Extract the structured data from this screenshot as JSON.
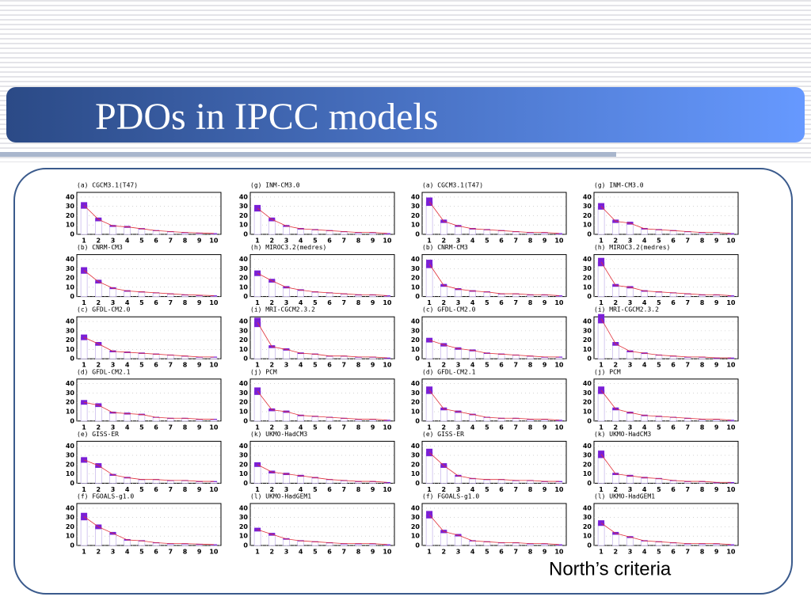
{
  "title": "PDOs in IPCC models",
  "note": "North’s criteria",
  "chart_data": [
    {
      "type": "bar",
      "title": "(a) CGCM3.1(T47)",
      "categories": [
        "1",
        "2",
        "3",
        "4",
        "5",
        "6",
        "7",
        "8",
        "9",
        "10"
      ],
      "values": [
        31,
        16,
        9,
        8,
        6,
        4,
        3,
        2,
        1.5,
        1
      ],
      "errors": [
        3.5,
        2,
        1,
        1,
        0.7,
        0.5,
        0.4,
        0.3,
        0.2,
        0.2
      ],
      "ylim": [
        0,
        45
      ],
      "yticks": [
        0,
        10,
        20,
        30,
        40
      ]
    },
    {
      "type": "bar",
      "title": "(b) CNRM-CM3",
      "categories": [
        "1",
        "2",
        "3",
        "4",
        "5",
        "6",
        "7",
        "8",
        "9",
        "10"
      ],
      "values": [
        28,
        16,
        9,
        6,
        5,
        4,
        3,
        2,
        1.5,
        1
      ],
      "errors": [
        3.5,
        2,
        1,
        0.8,
        0.6,
        0.5,
        0.4,
        0.3,
        0.2,
        0.2
      ],
      "ylim": [
        0,
        45
      ],
      "yticks": [
        0,
        10,
        20,
        30,
        40
      ]
    },
    {
      "type": "bar",
      "title": "(c) GFDL-CM2.0",
      "categories": [
        "1",
        "2",
        "3",
        "4",
        "5",
        "6",
        "7",
        "8",
        "9",
        "10"
      ],
      "values": [
        23,
        16,
        8,
        7,
        6,
        5,
        4,
        3,
        2,
        2
      ],
      "errors": [
        3,
        2,
        1,
        0.8,
        0.7,
        0.6,
        0.5,
        0.4,
        0.3,
        0.3
      ],
      "ylim": [
        0,
        45
      ],
      "yticks": [
        0,
        10,
        20,
        30,
        40
      ]
    },
    {
      "type": "bar",
      "title": "(d) GFDL-CM2.1",
      "categories": [
        "1",
        "2",
        "3",
        "4",
        "5",
        "6",
        "7",
        "8",
        "9",
        "10"
      ],
      "values": [
        20,
        17,
        9,
        8,
        7,
        4,
        3,
        3,
        2,
        2
      ],
      "errors": [
        2.5,
        2,
        1,
        1,
        0.8,
        0.5,
        0.4,
        0.4,
        0.3,
        0.3
      ],
      "ylim": [
        0,
        45
      ],
      "yticks": [
        0,
        10,
        20,
        30,
        40
      ]
    },
    {
      "type": "bar",
      "title": "(e) GISS-ER",
      "categories": [
        "1",
        "2",
        "3",
        "4",
        "5",
        "6",
        "7",
        "8",
        "9",
        "10"
      ],
      "values": [
        25,
        19,
        9,
        6,
        4,
        4,
        3,
        3,
        2,
        2
      ],
      "errors": [
        3,
        2.5,
        1,
        0.8,
        0.5,
        0.5,
        0.4,
        0.4,
        0.3,
        0.3
      ],
      "ylim": [
        0,
        45
      ],
      "yticks": [
        0,
        10,
        20,
        30,
        40
      ]
    },
    {
      "type": "bar",
      "title": "(f) FGOALS-g1.0",
      "categories": [
        "1",
        "2",
        "3",
        "4",
        "5",
        "6",
        "7",
        "8",
        "9",
        "10"
      ],
      "values": [
        31,
        20,
        13,
        6,
        5,
        3,
        2,
        2,
        1.5,
        1
      ],
      "errors": [
        4,
        2.5,
        1.5,
        0.8,
        0.6,
        0.4,
        0.3,
        0.3,
        0.2,
        0.2
      ],
      "ylim": [
        0,
        45
      ],
      "yticks": [
        0,
        10,
        20,
        30,
        40
      ]
    },
    {
      "type": "bar",
      "title": "(g) INM-CM3.0",
      "categories": [
        "1",
        "2",
        "3",
        "4",
        "5",
        "6",
        "7",
        "8",
        "9",
        "10"
      ],
      "values": [
        28,
        16,
        9,
        6,
        5,
        4,
        3,
        2,
        2,
        1
      ],
      "errors": [
        3.5,
        2,
        1,
        0.8,
        0.6,
        0.5,
        0.4,
        0.3,
        0.3,
        0.2
      ],
      "ylim": [
        0,
        45
      ],
      "yticks": [
        0,
        10,
        20,
        30,
        40
      ]
    },
    {
      "type": "bar",
      "title": "(h) MIROC3.2(medres)",
      "categories": [
        "1",
        "2",
        "3",
        "4",
        "5",
        "6",
        "7",
        "8",
        "9",
        "10"
      ],
      "values": [
        25,
        17,
        10,
        7,
        5,
        4,
        3,
        2,
        2,
        1
      ],
      "errors": [
        3,
        2,
        1.2,
        0.8,
        0.6,
        0.5,
        0.4,
        0.3,
        0.3,
        0.2
      ],
      "ylim": [
        0,
        45
      ],
      "yticks": [
        0,
        10,
        20,
        30,
        40
      ]
    },
    {
      "type": "bar",
      "title": "(i) MRI-CGCM2.3.2",
      "categories": [
        "1",
        "2",
        "3",
        "4",
        "5",
        "6",
        "7",
        "8",
        "9",
        "10"
      ],
      "values": [
        39,
        13,
        10,
        6,
        5,
        3,
        3,
        2,
        2,
        1
      ],
      "errors": [
        5,
        1.5,
        1.2,
        0.8,
        0.6,
        0.4,
        0.4,
        0.3,
        0.3,
        0.2
      ],
      "ylim": [
        0,
        45
      ],
      "yticks": [
        0,
        10,
        20,
        30,
        40
      ]
    },
    {
      "type": "bar",
      "title": "(j) PCM",
      "categories": [
        "1",
        "2",
        "3",
        "4",
        "5",
        "6",
        "7",
        "8",
        "9",
        "10"
      ],
      "values": [
        32,
        12,
        10,
        6,
        5,
        4,
        3,
        2,
        2,
        1
      ],
      "errors": [
        4,
        1.5,
        1.2,
        0.8,
        0.6,
        0.5,
        0.4,
        0.3,
        0.3,
        0.2
      ],
      "ylim": [
        0,
        45
      ],
      "yticks": [
        0,
        10,
        20,
        30,
        40
      ]
    },
    {
      "type": "bar",
      "title": "(k) UKMO-HadCM3",
      "categories": [
        "1",
        "2",
        "3",
        "4",
        "5",
        "6",
        "7",
        "8",
        "9",
        "10"
      ],
      "values": [
        20,
        12,
        10,
        8,
        6,
        4,
        3,
        2,
        2,
        1
      ],
      "errors": [
        2.5,
        1.5,
        1.2,
        1,
        0.7,
        0.5,
        0.4,
        0.3,
        0.3,
        0.2
      ],
      "ylim": [
        0,
        45
      ],
      "yticks": [
        0,
        10,
        20,
        30,
        40
      ]
    },
    {
      "type": "bar",
      "title": "(l) UKMO-HadGEM1",
      "categories": [
        "1",
        "2",
        "3",
        "4",
        "5",
        "6",
        "7",
        "8",
        "9",
        "10"
      ],
      "values": [
        17,
        12,
        7,
        5,
        4,
        3,
        2,
        2,
        2,
        1
      ],
      "errors": [
        2,
        1.5,
        0.8,
        0.6,
        0.5,
        0.4,
        0.3,
        0.3,
        0.3,
        0.2
      ],
      "ylim": [
        0,
        45
      ],
      "yticks": [
        0,
        10,
        20,
        30,
        40
      ]
    },
    {
      "type": "bar",
      "title": "(a) CGCM3.1(T47)",
      "categories": [
        "1",
        "2",
        "3",
        "4",
        "5",
        "6",
        "7",
        "8",
        "9",
        "10"
      ],
      "values": [
        35,
        14,
        9,
        6,
        5,
        4,
        3,
        2,
        2,
        1
      ],
      "errors": [
        4.5,
        1.8,
        1,
        0.8,
        0.6,
        0.5,
        0.4,
        0.3,
        0.3,
        0.2
      ],
      "ylim": [
        0,
        45
      ],
      "yticks": [
        0,
        10,
        20,
        30,
        40
      ]
    },
    {
      "type": "bar",
      "title": "(b) CNRM-CM3",
      "categories": [
        "1",
        "2",
        "3",
        "4",
        "5",
        "6",
        "7",
        "8",
        "9",
        "10"
      ],
      "values": [
        35,
        12,
        8,
        6,
        5,
        3,
        3,
        2,
        2,
        1
      ],
      "errors": [
        4.5,
        1.5,
        1,
        0.8,
        0.6,
        0.4,
        0.4,
        0.3,
        0.3,
        0.2
      ],
      "ylim": [
        0,
        45
      ],
      "yticks": [
        0,
        10,
        20,
        30,
        40
      ]
    },
    {
      "type": "bar",
      "title": "(c) GFDL-CM2.0",
      "categories": [
        "1",
        "2",
        "3",
        "4",
        "5",
        "6",
        "7",
        "8",
        "9",
        "10"
      ],
      "values": [
        20,
        15,
        11,
        9,
        6,
        5,
        4,
        3,
        2,
        2
      ],
      "errors": [
        2.5,
        1.8,
        1.3,
        1,
        0.7,
        0.6,
        0.5,
        0.4,
        0.3,
        0.3
      ],
      "ylim": [
        0,
        45
      ],
      "yticks": [
        0,
        10,
        20,
        30,
        40
      ]
    },
    {
      "type": "bar",
      "title": "(d) GFDL-CM2.1",
      "categories": [
        "1",
        "2",
        "3",
        "4",
        "5",
        "6",
        "7",
        "8",
        "9",
        "10"
      ],
      "values": [
        33,
        13,
        10,
        7,
        4,
        3,
        3,
        2,
        2,
        1
      ],
      "errors": [
        4,
        1.5,
        1.2,
        0.8,
        0.5,
        0.4,
        0.4,
        0.3,
        0.3,
        0.2
      ],
      "ylim": [
        0,
        45
      ],
      "yticks": [
        0,
        10,
        20,
        30,
        40
      ]
    },
    {
      "type": "bar",
      "title": "(e) GISS-ER",
      "categories": [
        "1",
        "2",
        "3",
        "4",
        "5",
        "6",
        "7",
        "8",
        "9",
        "10"
      ],
      "values": [
        33,
        19,
        8,
        5,
        4,
        4,
        3,
        3,
        2,
        2
      ],
      "errors": [
        4,
        2.5,
        1,
        0.6,
        0.5,
        0.5,
        0.4,
        0.4,
        0.3,
        0.3
      ],
      "ylim": [
        0,
        45
      ],
      "yticks": [
        0,
        10,
        20,
        30,
        40
      ]
    },
    {
      "type": "bar",
      "title": "(f) FGOALS-g1.0",
      "categories": [
        "1",
        "2",
        "3",
        "4",
        "5",
        "6",
        "7",
        "8",
        "9",
        "10"
      ],
      "values": [
        33,
        15,
        11,
        5,
        4,
        3,
        3,
        2,
        2,
        1
      ],
      "errors": [
        4,
        1.8,
        1.3,
        0.6,
        0.5,
        0.4,
        0.4,
        0.3,
        0.3,
        0.2
      ],
      "ylim": [
        0,
        45
      ],
      "yticks": [
        0,
        10,
        20,
        30,
        40
      ]
    },
    {
      "type": "bar",
      "title": "(g) INM-CM3.0",
      "categories": [
        "1",
        "2",
        "3",
        "4",
        "5",
        "6",
        "7",
        "8",
        "9",
        "10"
      ],
      "values": [
        30,
        14,
        12,
        6,
        5,
        4,
        3,
        2,
        2,
        1
      ],
      "errors": [
        3.5,
        1.8,
        1.5,
        0.8,
        0.6,
        0.5,
        0.4,
        0.3,
        0.3,
        0.2
      ],
      "ylim": [
        0,
        45
      ],
      "yticks": [
        0,
        10,
        20,
        30,
        40
      ]
    },
    {
      "type": "bar",
      "title": "(h) MIROC3.2(medres)",
      "categories": [
        "1",
        "2",
        "3",
        "4",
        "5",
        "6",
        "7",
        "8",
        "9",
        "10"
      ],
      "values": [
        37,
        12,
        10,
        6,
        5,
        4,
        3,
        2,
        2,
        1
      ],
      "errors": [
        4.5,
        1.5,
        1.2,
        0.8,
        0.6,
        0.5,
        0.4,
        0.3,
        0.3,
        0.2
      ],
      "ylim": [
        0,
        45
      ],
      "yticks": [
        0,
        10,
        20,
        30,
        40
      ]
    },
    {
      "type": "bar",
      "title": "(i) MRI-CGCM2.3.2",
      "categories": [
        "1",
        "2",
        "3",
        "4",
        "5",
        "6",
        "7",
        "8",
        "9",
        "10"
      ],
      "values": [
        43,
        16,
        8,
        6,
        4,
        3,
        2,
        2,
        1,
        1
      ],
      "errors": [
        5,
        2,
        1,
        0.8,
        0.5,
        0.4,
        0.3,
        0.3,
        0.2,
        0.2
      ],
      "ylim": [
        0,
        45
      ],
      "yticks": [
        0,
        10,
        20,
        30,
        40
      ]
    },
    {
      "type": "bar",
      "title": "(j) PCM",
      "categories": [
        "1",
        "2",
        "3",
        "4",
        "5",
        "6",
        "7",
        "8",
        "9",
        "10"
      ],
      "values": [
        33,
        13,
        9,
        6,
        5,
        4,
        3,
        2,
        2,
        1
      ],
      "errors": [
        4,
        1.5,
        1,
        0.8,
        0.6,
        0.5,
        0.4,
        0.3,
        0.3,
        0.2
      ],
      "ylim": [
        0,
        45
      ],
      "yticks": [
        0,
        10,
        20,
        30,
        40
      ]
    },
    {
      "type": "bar",
      "title": "(k) UKMO-HadCM3",
      "categories": [
        "1",
        "2",
        "3",
        "4",
        "5",
        "6",
        "7",
        "8",
        "9",
        "10"
      ],
      "values": [
        31,
        10,
        8,
        6,
        5,
        3,
        2,
        2,
        1,
        1
      ],
      "errors": [
        4,
        1.2,
        1,
        0.8,
        0.6,
        0.4,
        0.3,
        0.3,
        0.2,
        0.2
      ],
      "ylim": [
        0,
        45
      ],
      "yticks": [
        0,
        10,
        20,
        30,
        40
      ]
    },
    {
      "type": "bar",
      "title": "(l) UKMO-HadGEM1",
      "categories": [
        "1",
        "2",
        "3",
        "4",
        "5",
        "6",
        "7",
        "8",
        "9",
        "10"
      ],
      "values": [
        24,
        13,
        9,
        5,
        4,
        3,
        2,
        2,
        2,
        1
      ],
      "errors": [
        3,
        1.5,
        1,
        0.6,
        0.5,
        0.4,
        0.3,
        0.3,
        0.3,
        0.2
      ],
      "ylim": [
        0,
        45
      ],
      "yticks": [
        0,
        10,
        20,
        30,
        40
      ]
    }
  ]
}
